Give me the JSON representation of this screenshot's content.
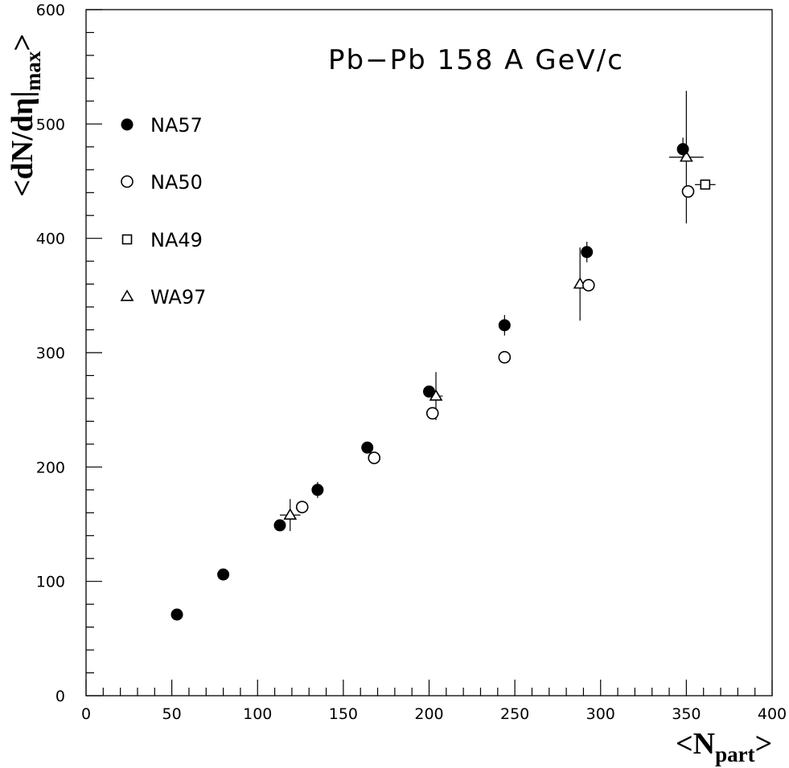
{
  "chart_data": {
    "type": "scatter",
    "title": "Pb−Pb 158 A GeV/c",
    "xlabel": {
      "main": "<N",
      "sub": "part",
      "end": ">"
    },
    "ylabel": {
      "main": "<dN/dη|",
      "sub": "max",
      "end": ">"
    },
    "xlim": [
      0,
      400
    ],
    "ylim": [
      0,
      600
    ],
    "x_ticks": [
      "0",
      "50",
      "100",
      "150",
      "200",
      "250",
      "300",
      "350",
      "400"
    ],
    "y_ticks": [
      "0",
      "100",
      "200",
      "300",
      "400",
      "500",
      "600"
    ],
    "grid": false,
    "legend_position": "left",
    "series": [
      {
        "name": "NA57",
        "marker": "filled-circle",
        "points": [
          {
            "x": 53,
            "y": 71,
            "yerr": 0,
            "xerr": 0
          },
          {
            "x": 80,
            "y": 106,
            "yerr": 0,
            "xerr": 0
          },
          {
            "x": 113,
            "y": 149,
            "yerr": 0,
            "xerr": 0
          },
          {
            "x": 135,
            "y": 180,
            "yerr": 7,
            "xerr": 0
          },
          {
            "x": 164,
            "y": 217,
            "yerr": 0,
            "xerr": 0
          },
          {
            "x": 200,
            "y": 266,
            "yerr": 0,
            "xerr": 0
          },
          {
            "x": 244,
            "y": 324,
            "yerr": 9,
            "xerr": 0
          },
          {
            "x": 292,
            "y": 388,
            "yerr": 9,
            "xerr": 0
          },
          {
            "x": 348,
            "y": 478,
            "yerr": 10,
            "xerr": 0
          }
        ]
      },
      {
        "name": "NA50",
        "marker": "open-circle",
        "points": [
          {
            "x": 126,
            "y": 165,
            "yerr": 0,
            "xerr": 0
          },
          {
            "x": 168,
            "y": 208,
            "yerr": 0,
            "xerr": 0
          },
          {
            "x": 202,
            "y": 247,
            "yerr": 0,
            "xerr": 0
          },
          {
            "x": 244,
            "y": 296,
            "yerr": 0,
            "xerr": 0
          },
          {
            "x": 293,
            "y": 359,
            "yerr": 0,
            "xerr": 0
          },
          {
            "x": 351,
            "y": 441,
            "yerr": 0,
            "xerr": 0
          }
        ]
      },
      {
        "name": "NA49",
        "marker": "open-square",
        "points": [
          {
            "x": 361,
            "y": 447,
            "yerr": 0,
            "xerr": 6
          }
        ]
      },
      {
        "name": "WA97",
        "marker": "open-triangle",
        "points": [
          {
            "x": 119,
            "y": 158,
            "yerr": 14,
            "xerr": 6
          },
          {
            "x": 204,
            "y": 262,
            "yerr": 21,
            "xerr": 4
          },
          {
            "x": 288,
            "y": 360,
            "yerr": 32,
            "xerr": 0
          },
          {
            "x": 350,
            "y": 471,
            "yerr": 58,
            "xerr": 10
          }
        ]
      }
    ]
  }
}
